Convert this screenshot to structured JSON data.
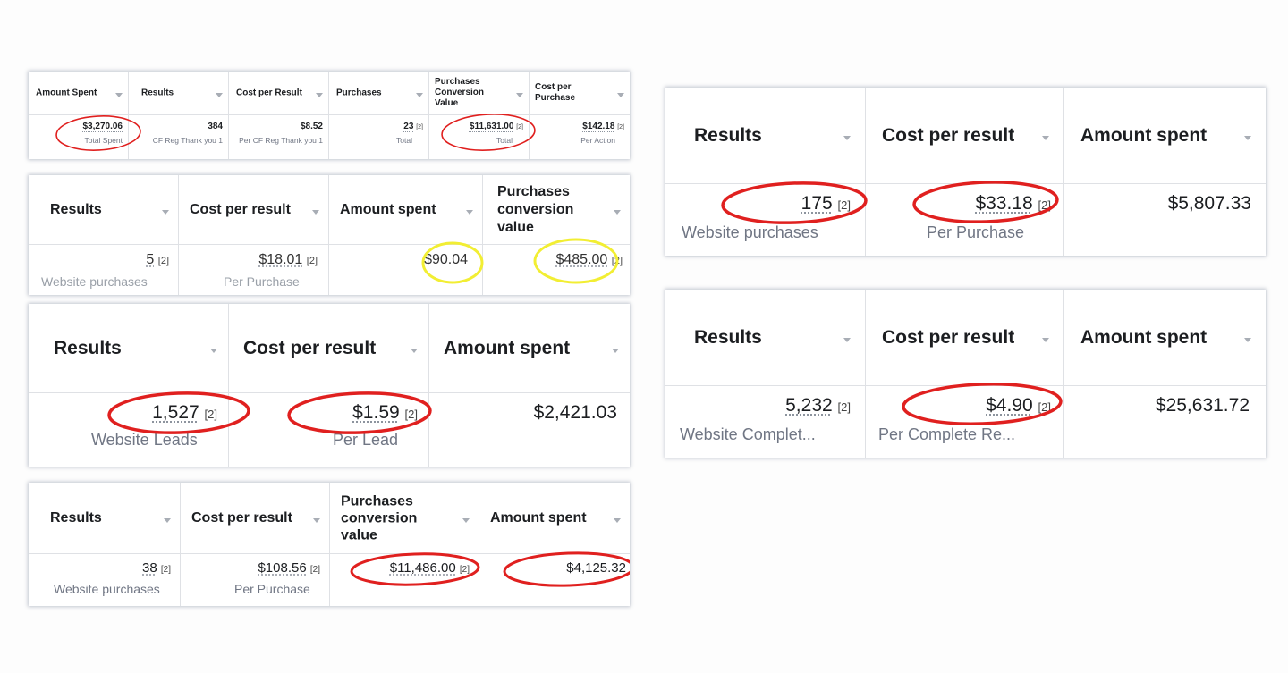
{
  "colors": {
    "circle_red": "#e0201f",
    "circle_yellow": "#f2ee33",
    "grid_line": "#dfe1e5",
    "sub_text": "#707684"
  },
  "icons": {
    "column_sort": "caret-down-icon"
  },
  "panel1": {
    "headers": [
      "Amount Spent",
      "Results",
      "Cost per Result",
      "Purchases",
      "Purchases Conversion Value",
      "Cost per Purchase"
    ],
    "values": [
      "$3,270.06",
      "384",
      "$8.52",
      "23",
      "$11,631.00",
      "$142.18"
    ],
    "sups": [
      "",
      "",
      "",
      "[2]",
      "[2]",
      "[2]"
    ],
    "subs": [
      "Total Spent",
      "CF Reg Thank you 1",
      "Per CF Reg Thank you 1",
      "Total",
      "Total",
      "Per Action"
    ]
  },
  "panel2": {
    "headers": [
      "Results",
      "Cost per result",
      "Amount spent",
      "Purchases conversion value"
    ],
    "values": [
      "5",
      "$18.01",
      "$90.04",
      "$485.00"
    ],
    "sups": [
      "[2]",
      "[2]",
      "",
      "[2]"
    ],
    "subs": [
      "Website purchases",
      "Per Purchase",
      "",
      ""
    ]
  },
  "panel3": {
    "headers": [
      "Results",
      "Cost per result",
      "Amount spent"
    ],
    "values": [
      "1,527",
      "$1.59",
      "$2,421.03"
    ],
    "sups": [
      "[2]",
      "[2]",
      ""
    ],
    "subs": [
      "Website Leads",
      "Per Lead",
      ""
    ]
  },
  "panel4": {
    "headers": [
      "Results",
      "Cost per result",
      "Purchases conversion value",
      "Amount spent"
    ],
    "values": [
      "38",
      "$108.56",
      "$11,486.00",
      "$4,125.32"
    ],
    "sups": [
      "[2]",
      "[2]",
      "[2]",
      ""
    ],
    "subs": [
      "Website purchases",
      "Per Purchase",
      "",
      ""
    ]
  },
  "panel5": {
    "headers": [
      "Results",
      "Cost per result",
      "Amount spent"
    ],
    "values": [
      "175",
      "$33.18",
      "$5,807.33"
    ],
    "sups": [
      "[2]",
      "[2]",
      ""
    ],
    "subs": [
      "Website purchases",
      "Per Purchase",
      ""
    ]
  },
  "panel6": {
    "headers": [
      "Results",
      "Cost per result",
      "Amount spent"
    ],
    "values": [
      "5,232",
      "$4.90",
      "$25,631.72"
    ],
    "sups": [
      "[2]",
      "[2]",
      ""
    ],
    "subs": [
      "Website Complet...",
      "Per Complete Re...",
      ""
    ]
  }
}
